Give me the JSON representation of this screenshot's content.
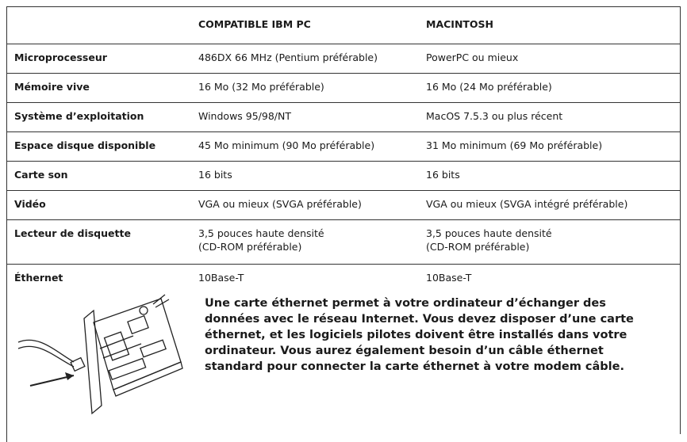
{
  "table": {
    "header": [
      "COMPATIBLE IBM PC",
      "MACINTOSH"
    ],
    "rows": [
      {
        "label": "Microprocesseur",
        "pc": [
          "486DX 66 MHz (Pentium préférable)"
        ],
        "mac": [
          "PowerPC ou mieux"
        ]
      },
      {
        "label": "Mémoire vive",
        "pc": [
          "16 Mo (32 Mo préférable)"
        ],
        "mac": [
          "16 Mo (24 Mo préférable)"
        ]
      },
      {
        "label": "Système d’exploitation",
        "pc": [
          "Windows 95/98/NT"
        ],
        "mac": [
          "MacOS 7.5.3 ou plus récent"
        ]
      },
      {
        "label": "Espace disque disponible",
        "pc": [
          "45 Mo minimum (90 Mo préférable)"
        ],
        "mac": [
          "31 Mo minimum (69 Mo préférable)"
        ]
      },
      {
        "label": "Carte son",
        "pc": [
          "16 bits"
        ],
        "mac": [
          "16 bits"
        ]
      },
      {
        "label": "Vidéo",
        "pc": [
          "VGA ou mieux (SVGA préférable)"
        ],
        "mac": [
          "VGA ou mieux (SVGA intégré préférable)"
        ]
      },
      {
        "label": "Lecteur de disquette",
        "pc": [
          "3,5 pouces haute densité",
          "(CD-ROM préférable)"
        ],
        "mac": [
          "3,5 pouces haute densité",
          "(CD-ROM préférable)"
        ]
      },
      {
        "label": "Éthernet",
        "pc": [
          "10Base-T"
        ],
        "mac": [
          "10Base-T"
        ]
      }
    ],
    "note": [
      "Une carte éthernet permet à votre ordinateur d’échanger des",
      "données avec le réseau Internet. Vous devez disposer d’une carte",
      "éthernet, et les logiciels pilotes doivent être installés dans votre",
      "ordinateur. Vous aurez également besoin d’un câble éthernet",
      "standard pour connecter la carte éthernet à votre modem câble."
    ]
  }
}
